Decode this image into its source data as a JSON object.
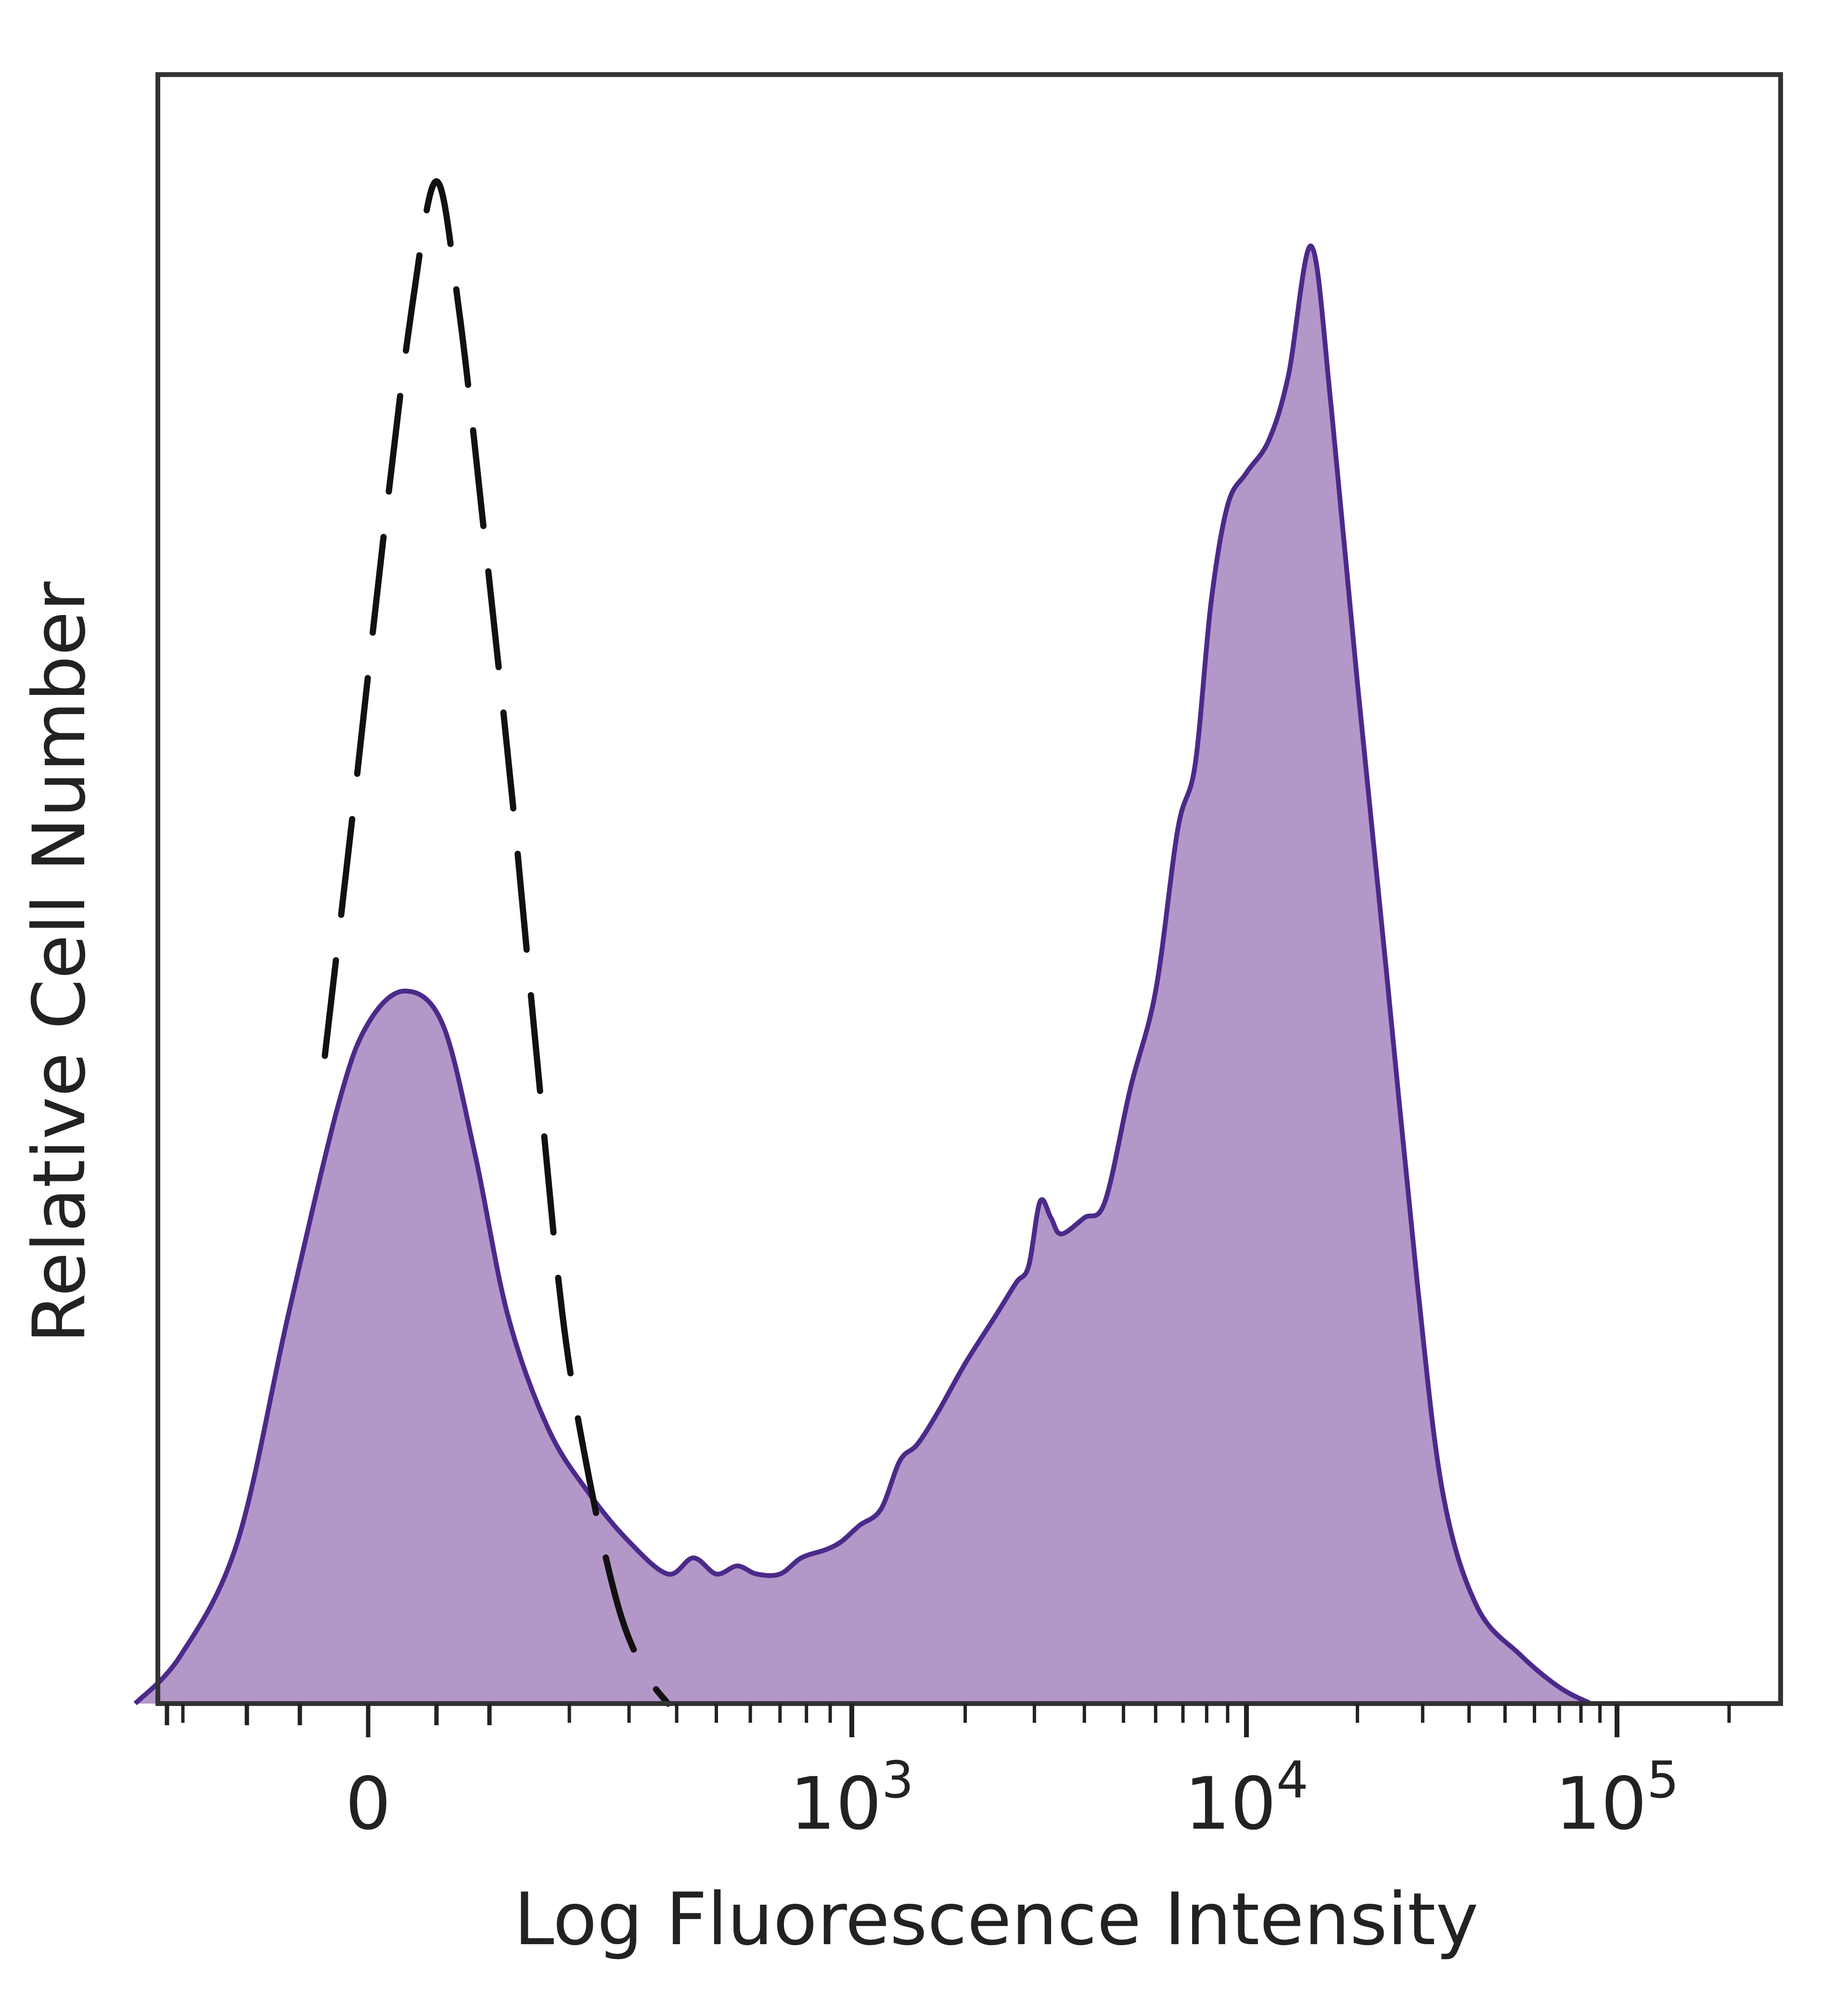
{
  "chart_data": {
    "type": "area",
    "xlabel": "Log Fluorescence Intensity",
    "ylabel": "Relative Cell Number",
    "x_scale": "biexponential",
    "x_ticks": [
      {
        "base": "0",
        "exp": ""
      },
      {
        "base": "10",
        "exp": "3"
      },
      {
        "base": "10",
        "exp": "4"
      },
      {
        "base": "10",
        "exp": "5"
      }
    ],
    "ylim": [
      0,
      100
    ],
    "grid": false,
    "colors": {
      "fill": "#b397c8",
      "stroke": "#4b2a8a",
      "isotype": "#111111",
      "axis": "#333333"
    },
    "series": [
      {
        "style": "filled-solid",
        "points": [
          [
            -250,
            0
          ],
          [
            -180,
            3
          ],
          [
            -110,
            10
          ],
          [
            -60,
            24
          ],
          [
            -20,
            37
          ],
          [
            0,
            42
          ],
          [
            25,
            44
          ],
          [
            55,
            42
          ],
          [
            85,
            34
          ],
          [
            120,
            24
          ],
          [
            170,
            17
          ],
          [
            230,
            13
          ],
          [
            300,
            10
          ],
          [
            380,
            8
          ],
          [
            440,
            9
          ],
          [
            500,
            8
          ],
          [
            560,
            8.5
          ],
          [
            620,
            8
          ],
          [
            700,
            8
          ],
          [
            780,
            9
          ],
          [
            880,
            9.5
          ],
          [
            950,
            10
          ],
          [
            1050,
            11
          ],
          [
            1200,
            12
          ],
          [
            1350,
            15
          ],
          [
            1500,
            16
          ],
          [
            1700,
            18
          ],
          [
            2000,
            21
          ],
          [
            2400,
            24
          ],
          [
            2700,
            26
          ],
          [
            2900,
            27
          ],
          [
            3100,
            31
          ],
          [
            3300,
            30
          ],
          [
            3500,
            29
          ],
          [
            4000,
            30
          ],
          [
            4500,
            31
          ],
          [
            5200,
            38
          ],
          [
            6000,
            44
          ],
          [
            6800,
            54
          ],
          [
            7500,
            58
          ],
          [
            8200,
            68
          ],
          [
            9000,
            74
          ],
          [
            10000,
            76
          ],
          [
            11500,
            78
          ],
          [
            13000,
            82
          ],
          [
            15000,
            90
          ],
          [
            17000,
            80
          ],
          [
            20000,
            63
          ],
          [
            24000,
            45
          ],
          [
            29000,
            26
          ],
          [
            34000,
            13
          ],
          [
            42000,
            6
          ],
          [
            55000,
            3
          ],
          [
            70000,
            1
          ],
          [
            85000,
            0
          ]
        ]
      },
      {
        "style": "isotype-dashed",
        "points": [
          [
            -30,
            40
          ],
          [
            -10,
            55
          ],
          [
            10,
            72
          ],
          [
            30,
            86
          ],
          [
            50,
            94
          ],
          [
            70,
            86
          ],
          [
            95,
            72
          ],
          [
            125,
            56
          ],
          [
            155,
            40
          ],
          [
            190,
            24
          ],
          [
            230,
            14
          ],
          [
            280,
            6
          ],
          [
            330,
            2
          ],
          [
            380,
            0
          ]
        ]
      }
    ]
  }
}
